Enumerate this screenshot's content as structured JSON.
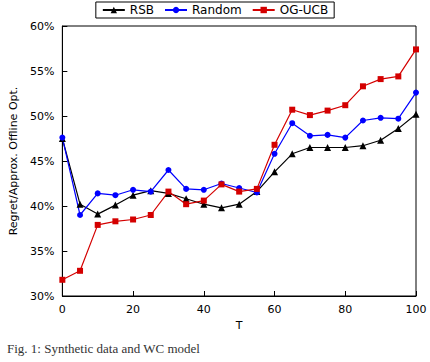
{
  "chart_data": {
    "type": "line",
    "title": "Fig. 1: Synthetic data and WC model",
    "x_label": "T",
    "y_label": "Regret/Approx. Offline Opt.",
    "x": [
      0,
      5,
      10,
      15,
      20,
      25,
      30,
      35,
      40,
      45,
      50,
      55,
      60,
      65,
      70,
      75,
      80,
      85,
      90,
      95,
      100
    ],
    "series": [
      {
        "name": "RSB",
        "color": "#000000",
        "marker": "triangle",
        "values": [
          47.5,
          40.2,
          39.1,
          40.1,
          41.2,
          41.7,
          41.4,
          40.8,
          40.2,
          39.8,
          40.2,
          41.6,
          43.8,
          45.8,
          46.5,
          46.5,
          46.5,
          46.7,
          47.3,
          48.6,
          50.2
        ]
      },
      {
        "name": "Random",
        "color": "#0000ff",
        "marker": "circle",
        "values": [
          47.6,
          39.0,
          41.4,
          41.2,
          41.8,
          41.6,
          44.0,
          41.9,
          41.8,
          42.5,
          42.0,
          41.5,
          45.8,
          49.2,
          47.8,
          47.9,
          47.6,
          49.5,
          49.8,
          49.7,
          52.6
        ]
      },
      {
        "name": "OG-UCB",
        "color": "#d40000",
        "marker": "square",
        "values": [
          31.8,
          32.8,
          37.9,
          38.3,
          38.5,
          39.0,
          41.6,
          40.2,
          40.6,
          42.4,
          41.6,
          41.9,
          46.8,
          50.7,
          50.1,
          50.6,
          51.2,
          53.3,
          54.1,
          54.4,
          57.4
        ]
      }
    ],
    "xlim": [
      0,
      100
    ],
    "xticks": [
      0,
      20,
      40,
      60,
      80,
      100
    ],
    "ylim": [
      30,
      60
    ],
    "yticks": [
      {
        "value": 30,
        "label": "30%"
      },
      {
        "value": 35,
        "label": "35%"
      },
      {
        "value": 40,
        "label": "40%"
      },
      {
        "value": 45,
        "label": "45%"
      },
      {
        "value": 50,
        "label": "50%"
      },
      {
        "value": 55,
        "label": "55%"
      },
      {
        "value": 60,
        "label": "60%"
      }
    ],
    "grid": false,
    "legend": "top"
  }
}
